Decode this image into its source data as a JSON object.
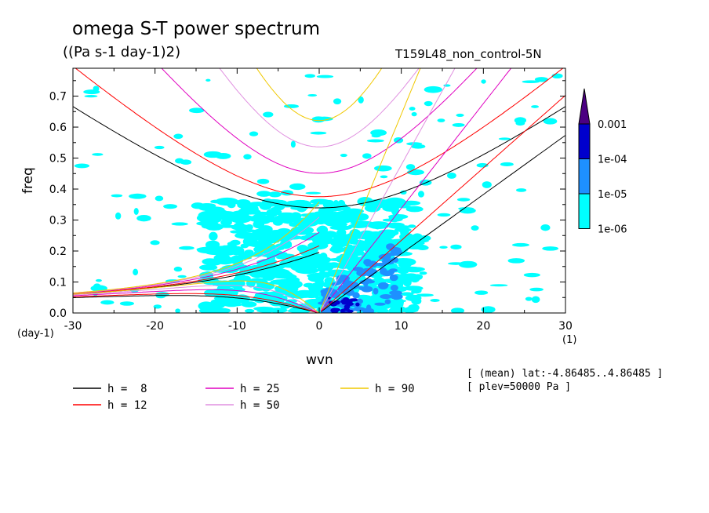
{
  "header": {
    "title": "omega S-T power spectrum",
    "units": "((Pa s-1 day-1)2)",
    "run_name": "T159L48_non_control-5N"
  },
  "footer": {
    "mean_info": "[ (mean) lat:-4.86485..4.86485 ]",
    "plev_info": "[ plev=50000 Pa ]"
  },
  "axes": {
    "x_unit": "(1)",
    "y_unit": "(day-1)"
  },
  "chart_data": {
    "type": "heatmap",
    "xlabel": "wvn",
    "ylabel": "freq",
    "xlim": [
      -30,
      30
    ],
    "ylim": [
      0,
      0.79
    ],
    "xticks": [
      -30,
      -20,
      -10,
      0,
      10,
      20,
      30
    ],
    "xtick_labels": [
      "-30",
      "-20",
      "-10",
      "0",
      "10",
      "20",
      "30"
    ],
    "yticks": [
      0,
      0.1,
      0.2,
      0.3,
      0.4,
      0.5,
      0.6,
      0.7
    ],
    "ytick_labels": [
      "0.0",
      "0.1",
      "0.2",
      "0.3",
      "0.4",
      "0.5",
      "0.6",
      "0.7"
    ],
    "colorbar": {
      "levels": [
        "1e-06",
        "1e-05",
        "1e-04",
        "0.001"
      ],
      "colors": [
        "#00ffff",
        "#1e90ff",
        "#0000cd",
        "#4b0082"
      ],
      "extend": "max"
    },
    "dispersion_curves": [
      {
        "label": "h =  8",
        "h": 8,
        "color": "#000000"
      },
      {
        "label": "h = 12",
        "h": 12,
        "color": "#ff0000"
      },
      {
        "label": "h = 25",
        "h": 25,
        "color": "#e000c0"
      },
      {
        "label": "h = 50",
        "h": 50,
        "color": "#e090e0"
      },
      {
        "label": "h = 90",
        "h": 90,
        "color": "#f0c800"
      }
    ],
    "power_regions": [
      {
        "level": "1e-06",
        "x": [
          -25,
          28
        ],
        "y": [
          0.0,
          0.75
        ],
        "note": "scattered patches"
      },
      {
        "level": "1e-06",
        "x": [
          -15,
          15
        ],
        "y": [
          0.0,
          0.4
        ],
        "note": "dense region"
      },
      {
        "level": "1e-05",
        "x": [
          0,
          10
        ],
        "y": [
          0.0,
          0.17
        ]
      },
      {
        "level": "1e-04",
        "x": [
          1,
          5
        ],
        "y": [
          0.0,
          0.06
        ]
      }
    ]
  }
}
